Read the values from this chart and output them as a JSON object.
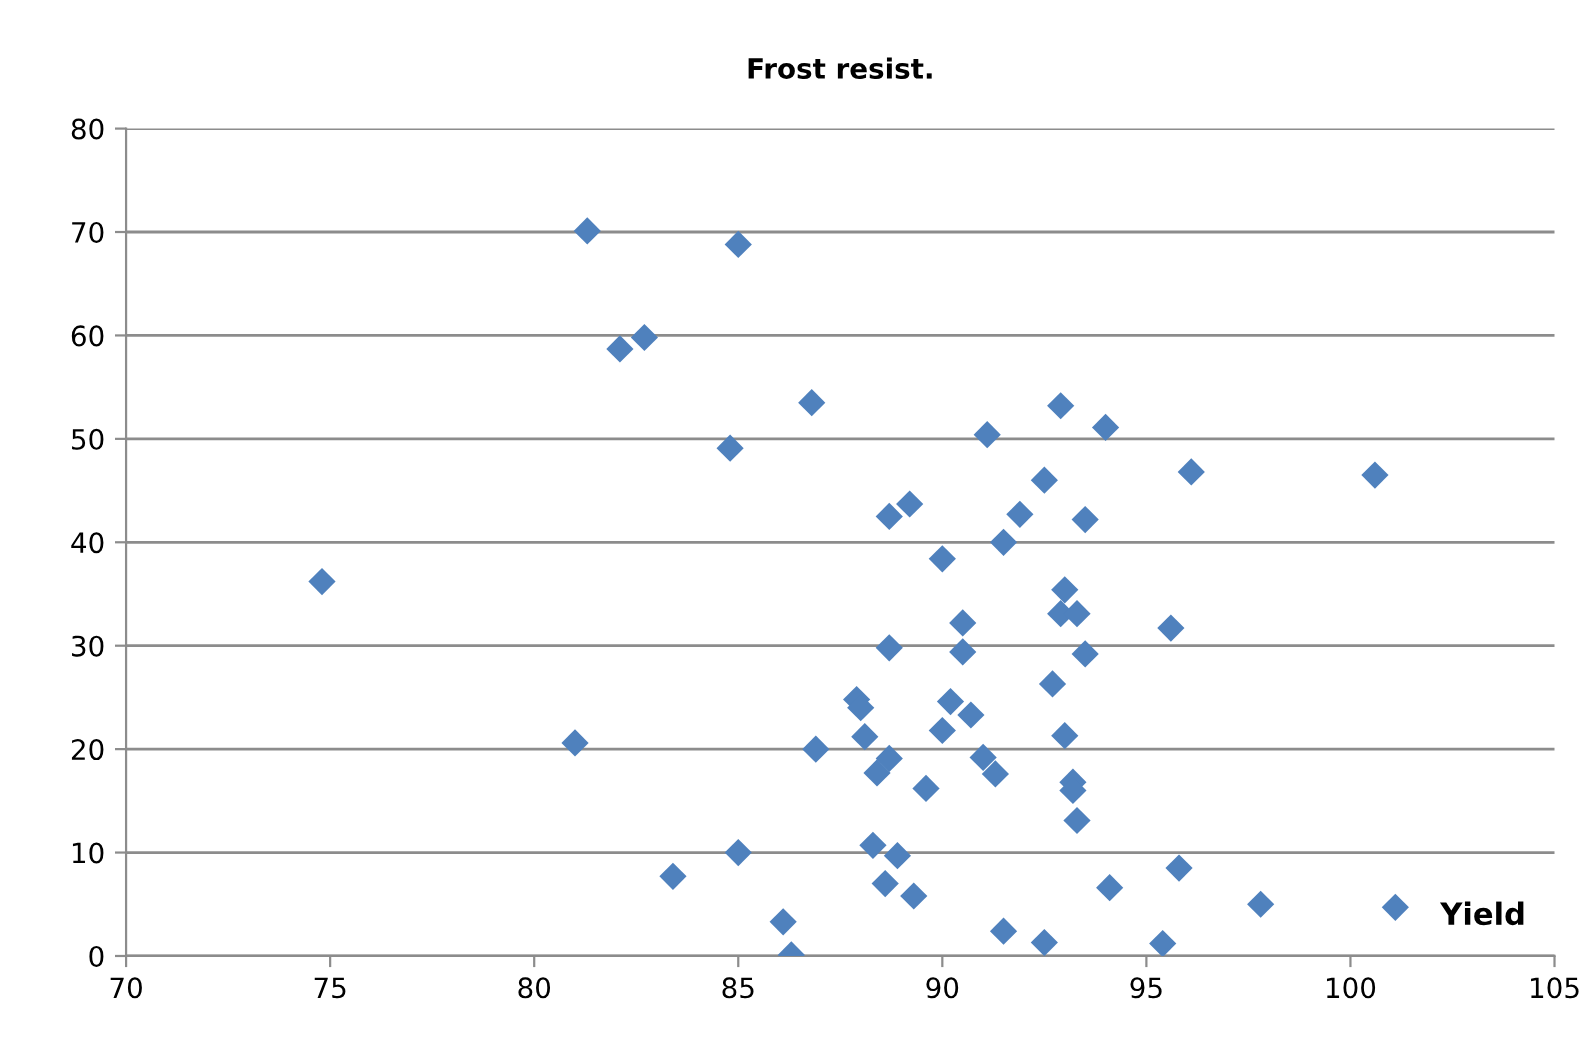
{
  "chart_data": {
    "type": "scatter",
    "title": "Frost resist.",
    "xlabel": "Yield",
    "x": [
      74.8,
      81.3,
      85.0,
      82.1,
      82.7,
      86.8,
      84.8,
      81.0,
      83.4,
      85.0,
      86.1,
      86.3,
      86.9,
      88.7,
      89.2,
      90.0,
      91.1,
      92.9,
      94.0,
      92.5,
      91.9,
      91.5,
      93.5,
      96.1,
      100.6,
      88.7,
      90.5,
      90.5,
      93.0,
      92.9,
      93.3,
      93.5,
      95.6,
      92.7,
      87.9,
      88.0,
      88.1,
      90.2,
      90.7,
      90.0,
      93.0,
      88.7,
      88.4,
      91.0,
      91.3,
      89.6,
      93.2,
      93.2,
      93.3,
      88.3,
      88.9,
      88.6,
      89.3,
      94.1,
      95.8,
      97.8,
      101.1,
      91.5,
      92.5,
      95.4
    ],
    "values": [
      36.2,
      70.1,
      68.8,
      58.7,
      59.8,
      53.5,
      49.1,
      20.6,
      7.7,
      10.0,
      3.3,
      0.1,
      20.0,
      42.5,
      43.7,
      38.4,
      50.4,
      53.2,
      51.1,
      46.0,
      42.7,
      40.0,
      42.2,
      46.8,
      46.5,
      29.8,
      32.2,
      29.4,
      35.4,
      33.1,
      33.1,
      29.2,
      31.7,
      26.3,
      24.8,
      24.0,
      21.2,
      24.6,
      23.3,
      21.8,
      21.3,
      19.1,
      17.7,
      19.2,
      17.6,
      16.2,
      16.8,
      16.0,
      13.1,
      10.7,
      9.7,
      7.0,
      5.8,
      6.6,
      8.5,
      5.0,
      4.7,
      2.4,
      1.3,
      1.2
    ],
    "color": "#4f81bd",
    "marker": "diamond",
    "xlim": [
      70,
      105
    ],
    "xticks": [
      70,
      75,
      80,
      85,
      90,
      95,
      100,
      105
    ],
    "ylim": [
      0,
      80
    ],
    "yticks": [
      0,
      10,
      20,
      30,
      40,
      50,
      60,
      70,
      80
    ],
    "grid": "y"
  }
}
